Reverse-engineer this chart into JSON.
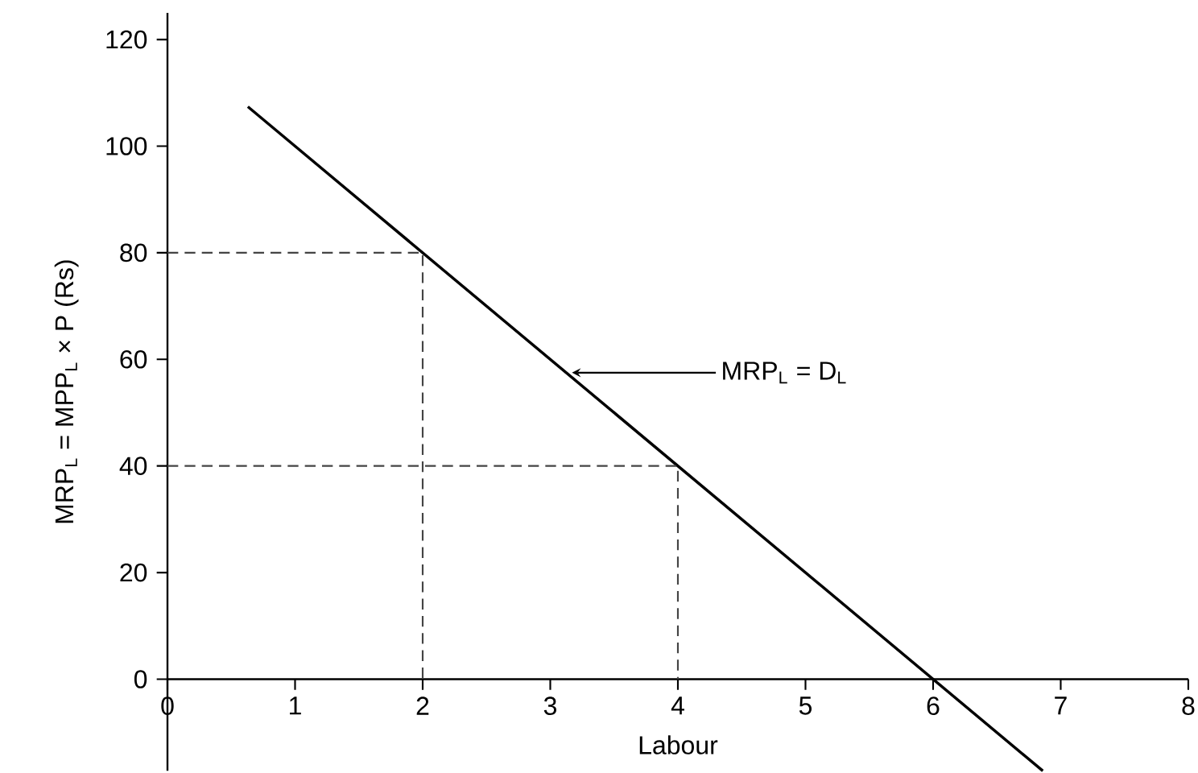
{
  "chart_data": {
    "type": "line",
    "xlabel": "Labour",
    "ylabel": "MRP$_{L}$ = MPP$_{L}$ × P (Rs)",
    "xlim": [
      0,
      8
    ],
    "ylim": [
      -17.2,
      125
    ],
    "xticks": [
      0,
      1,
      2,
      3,
      4,
      5,
      6,
      7,
      8
    ],
    "yticks": [
      0,
      20,
      40,
      60,
      80,
      100,
      120
    ],
    "series": [
      {
        "color": "#000000",
        "x": [
          0.63,
          6.86
        ],
        "values": [
          107.4,
          -17.2
        ]
      },
      {
        "color": "#444444",
        "line_style": "dashed",
        "x": [
          0,
          2,
          2
        ],
        "values": [
          80,
          80,
          0
        ]
      },
      {
        "color": "#444444",
        "line_style": "dashed",
        "x": [
          0,
          4,
          4
        ],
        "values": [
          40,
          40,
          0
        ]
      }
    ],
    "annotations": [
      {
        "text": "MRP$_{L}$ = D$_{L}$",
        "x": 3.17,
        "y": 57.5
      }
    ]
  }
}
